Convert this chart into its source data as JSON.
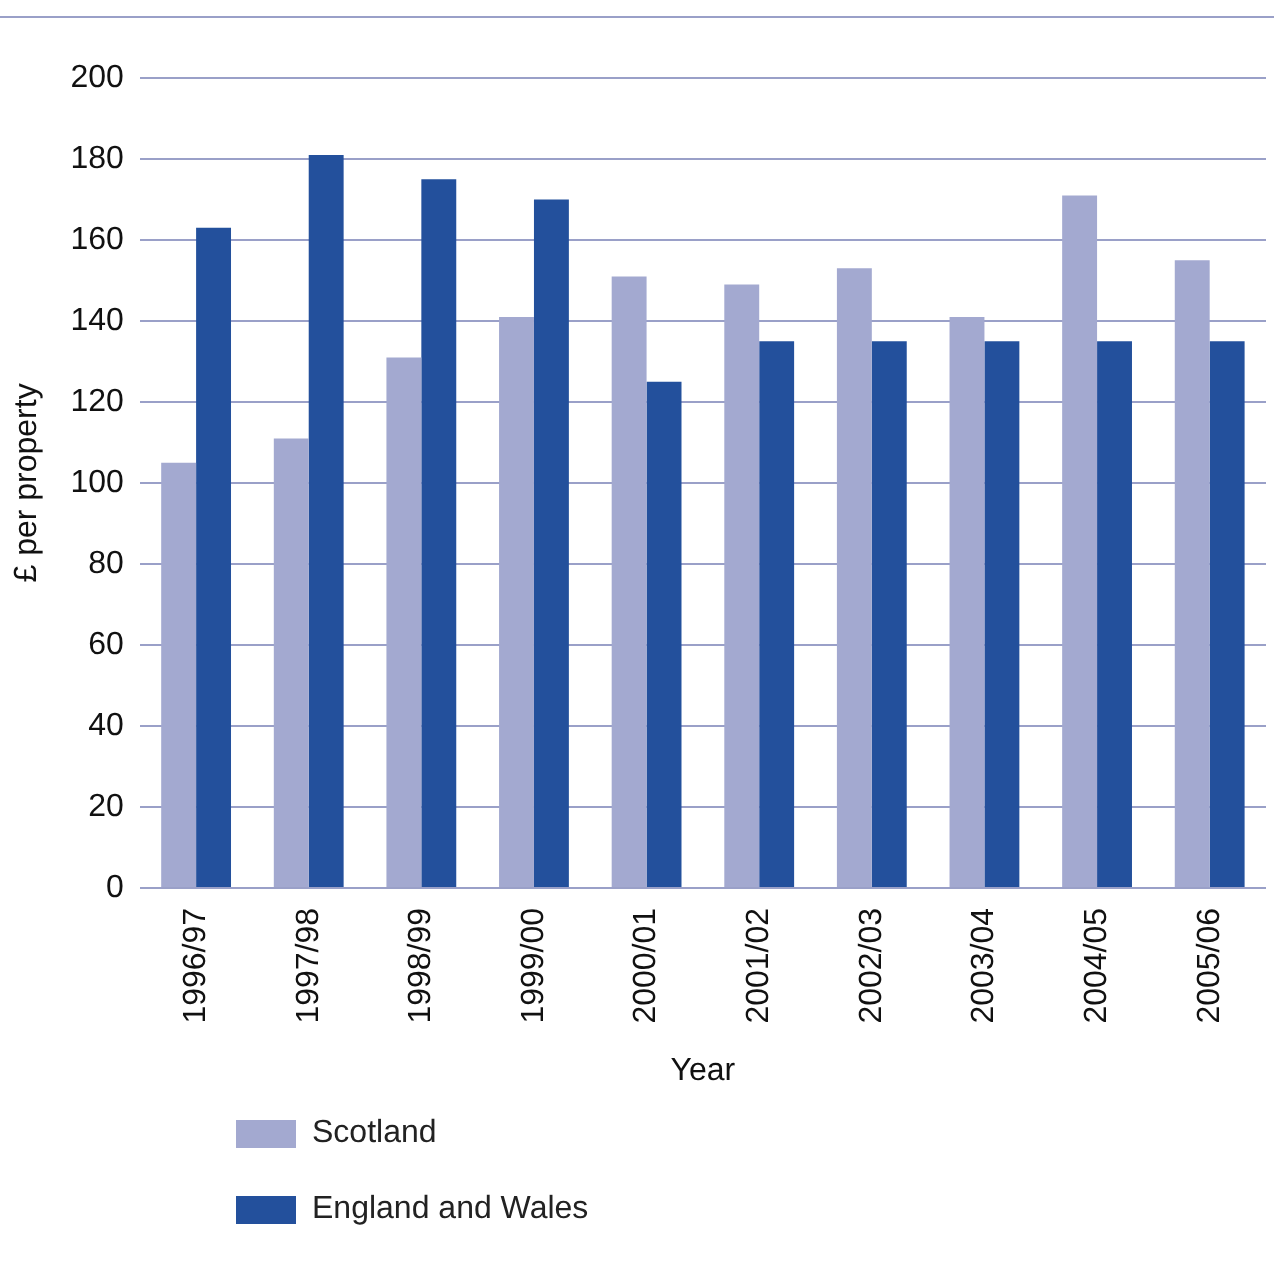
{
  "chart_data": {
    "type": "bar",
    "xlabel": "Year",
    "ylabel": "£ per property",
    "categories": [
      "1996/97",
      "1997/98",
      "1998/99",
      "1999/00",
      "2000/01",
      "2001/02",
      "2002/03",
      "2003/04",
      "2004/05",
      "2005/06"
    ],
    "series": [
      {
        "name": "Scotland",
        "color": "#a3a9d0",
        "values": [
          105,
          111,
          131,
          141,
          151,
          149,
          153,
          141,
          171,
          155
        ]
      },
      {
        "name": "England and Wales",
        "color": "#23509c",
        "values": [
          163,
          181,
          175,
          170,
          125,
          135,
          135,
          135,
          135,
          135
        ]
      }
    ],
    "ylim": [
      0,
      200
    ],
    "yticks": [
      0,
      20,
      40,
      60,
      80,
      100,
      120,
      140,
      160,
      180,
      200
    ],
    "grid": "y",
    "legend": "bottom left"
  }
}
